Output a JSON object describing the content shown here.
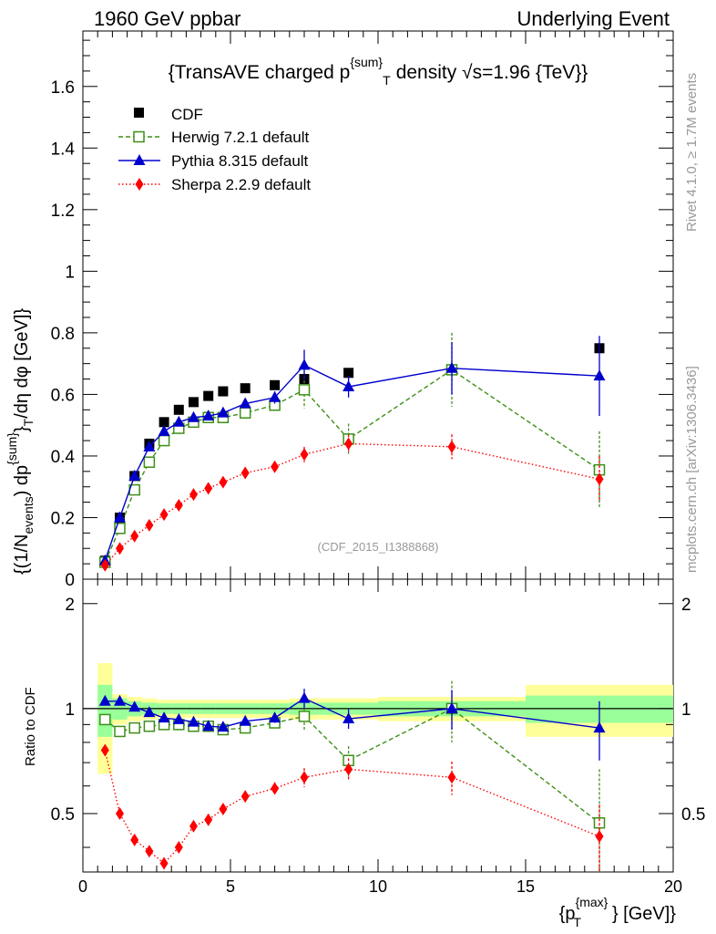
{
  "header": {
    "left": "1960 GeV ppbar",
    "right": "Underlying Event"
  },
  "side": {
    "rivet": "Rivet 4.1.0, ≥ 1.7M events",
    "mcplots": "mcplots.cern.ch [arXiv:1306.3436]"
  },
  "chart_data": {
    "type": "scatter",
    "title": {
      "main": "{TransAVE charged p",
      "sup": "{sum}",
      "sub": "T",
      "tail": "density √s=1.96 {TeV}}"
    },
    "watermark": "(CDF_2015_I1388868)",
    "ylabel_text": "{(1/N_events) dp^{sum}_T}/dη dφ [GeV]}",
    "ylabel": {
      "p1": "{(1/N",
      "p1sub": "events",
      "p2": ") dp",
      "p2sup": "{sum}",
      "p3": "}",
      "p3sub": "T",
      "p4": "/dη  dφ [GeV]}"
    },
    "ratio_ylabel": "Ratio to CDF",
    "xlabel_text": "{p_T^{max}} [GeV]}",
    "xlabel": {
      "p1": "{p",
      "sup": "{max}",
      "sub": "T",
      "p2": "} [GeV]}"
    },
    "xlim": [
      0,
      20
    ],
    "ylim": [
      0,
      1.78
    ],
    "ratio_ylim": [
      0.34,
      2.35
    ],
    "x_ticks": [
      0,
      5,
      10,
      15,
      20
    ],
    "x_tick_labels": [
      "0",
      "5",
      "10",
      "15",
      "20"
    ],
    "y_ticks": [
      0,
      0.2,
      0.4,
      0.6,
      0.8,
      1,
      1.2,
      1.4,
      1.6
    ],
    "y_tick_labels": [
      "0",
      "0.2",
      "0.4",
      "0.6",
      "0.8",
      "1",
      "1.2",
      "1.4",
      "1.6"
    ],
    "ratio_ticks": [
      0.5,
      1,
      2
    ],
    "ratio_tick_labels": [
      "0.5",
      "1",
      "2"
    ],
    "x": [
      0.75,
      1.25,
      1.75,
      2.25,
      2.75,
      3.25,
      3.75,
      4.25,
      4.75,
      5.5,
      6.5,
      7.5,
      9.0,
      12.5,
      17.5
    ],
    "x_edges": [
      0.5,
      1.0,
      1.5,
      2.0,
      2.5,
      3.0,
      3.5,
      4.0,
      4.5,
      5.0,
      6.0,
      7.0,
      8.0,
      10.0,
      15.0,
      20.0
    ],
    "band_inner": [
      0.17,
      0.07,
      0.05,
      0.04,
      0.035,
      0.035,
      0.035,
      0.035,
      0.035,
      0.035,
      0.035,
      0.04,
      0.04,
      0.05,
      0.09
    ],
    "band_outer": [
      0.35,
      0.1,
      0.08,
      0.07,
      0.06,
      0.06,
      0.06,
      0.06,
      0.06,
      0.06,
      0.06,
      0.07,
      0.07,
      0.08,
      0.17
    ],
    "series": [
      {
        "name": "CDF",
        "color": "#000000",
        "marker": "square-filled",
        "line": "none",
        "values": [
          0.06,
          0.2,
          0.335,
          0.44,
          0.51,
          0.55,
          0.575,
          0.595,
          0.61,
          0.62,
          0.63,
          0.65,
          0.67,
          0.68,
          0.75
        ],
        "errors": [
          0,
          0,
          0,
          0,
          0,
          0,
          0,
          0,
          0,
          0,
          0,
          0,
          0,
          0,
          0
        ]
      },
      {
        "name": "Herwig 7.2.1 default",
        "color": "#3d8f17",
        "marker": "square-open",
        "line": "dashed",
        "values": [
          0.055,
          0.165,
          0.29,
          0.38,
          0.45,
          0.49,
          0.51,
          0.525,
          0.525,
          0.54,
          0.565,
          0.615,
          0.455,
          0.68,
          0.355
        ],
        "errors": [
          0.005,
          0.008,
          0.01,
          0.01,
          0.01,
          0.01,
          0.01,
          0.01,
          0.012,
          0.012,
          0.02,
          0.06,
          0.05,
          0.12,
          0.125
        ],
        "ratio": [
          0.93,
          0.86,
          0.88,
          0.89,
          0.9,
          0.9,
          0.89,
          0.89,
          0.87,
          0.88,
          0.91,
          0.95,
          0.71,
          1.0,
          0.47
        ],
        "ratio_errors": [
          0.02,
          0.02,
          0.02,
          0.02,
          0.02,
          0.02,
          0.02,
          0.02,
          0.02,
          0.02,
          0.03,
          0.08,
          0.07,
          0.2,
          0.2
        ]
      },
      {
        "name": "Pythia 8.315 default",
        "color": "#0000cc",
        "marker": "triangle-filled",
        "line": "solid",
        "values": [
          0.06,
          0.2,
          0.335,
          0.43,
          0.48,
          0.51,
          0.525,
          0.53,
          0.54,
          0.57,
          0.59,
          0.695,
          0.625,
          0.685,
          0.66
        ],
        "errors": [
          0.005,
          0.005,
          0.008,
          0.008,
          0.008,
          0.008,
          0.008,
          0.01,
          0.01,
          0.015,
          0.02,
          0.05,
          0.035,
          0.085,
          0.13
        ],
        "ratio": [
          1.05,
          1.05,
          1.01,
          0.975,
          0.94,
          0.93,
          0.915,
          0.89,
          0.885,
          0.92,
          0.94,
          1.07,
          0.935,
          1.0,
          0.88
        ],
        "ratio_errors": [
          0.01,
          0.01,
          0.01,
          0.01,
          0.01,
          0.01,
          0.01,
          0.01,
          0.01,
          0.02,
          0.03,
          0.07,
          0.06,
          0.13,
          0.17
        ]
      },
      {
        "name": "Sherpa 2.2.9 default",
        "color": "#ff0000",
        "marker": "diamond-filled",
        "line": "dotted",
        "values": [
          0.045,
          0.1,
          0.14,
          0.175,
          0.21,
          0.24,
          0.275,
          0.295,
          0.315,
          0.345,
          0.365,
          0.405,
          0.44,
          0.43,
          0.325
        ],
        "errors": [
          0.003,
          0.004,
          0.005,
          0.005,
          0.006,
          0.006,
          0.007,
          0.008,
          0.009,
          0.01,
          0.015,
          0.025,
          0.03,
          0.04,
          0.075
        ],
        "ratio": [
          0.76,
          0.5,
          0.42,
          0.39,
          0.36,
          0.4,
          0.46,
          0.48,
          0.515,
          0.56,
          0.59,
          0.635,
          0.67,
          0.635,
          0.43
        ],
        "ratio_errors": [
          0.01,
          0.01,
          0.01,
          0.01,
          0.01,
          0.01,
          0.01,
          0.015,
          0.015,
          0.02,
          0.025,
          0.04,
          0.05,
          0.07,
          0.1
        ]
      }
    ]
  }
}
